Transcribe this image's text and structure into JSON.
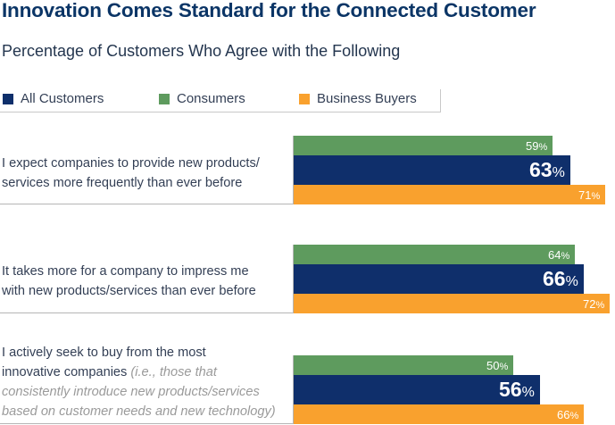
{
  "title": "Innovation Comes Standard for the Connected Customer",
  "subtitle": "Percentage of Customers Who Agree with the Following",
  "colors": {
    "all_customers": "#0f2f6b",
    "consumers": "#5e9b5e",
    "business_buyers": "#f9a12e"
  },
  "chart_data": {
    "type": "bar",
    "orientation": "horizontal",
    "title": "Innovation Comes Standard for the Connected Customer",
    "subtitle": "Percentage of Customers Who Agree with the Following",
    "unit": "%",
    "legend_position": "top-left",
    "series_order": [
      "Consumers",
      "All Customers",
      "Business Buyers"
    ],
    "legend": [
      "All Customers",
      "Consumers",
      "Business Buyers"
    ],
    "categories": [
      {
        "lines": [
          "I expect companies to provide new products/",
          "services more frequently than ever before"
        ],
        "qualifier_lines": []
      },
      {
        "lines": [
          "It takes more for a company to impress me",
          "with new products/services than ever before"
        ],
        "qualifier_lines": []
      },
      {
        "lines": [
          "I actively seek to buy from the most",
          "innovative companies"
        ],
        "qualifier_lines": [
          "(i.e., those that",
          "consistently introduce new products/services",
          "based on customer needs and new technology)"
        ]
      }
    ],
    "series": [
      {
        "name": "Consumers",
        "values": [
          59,
          64,
          50
        ]
      },
      {
        "name": "All Customers",
        "values": [
          63,
          66,
          56
        ]
      },
      {
        "name": "Business Buyers",
        "values": [
          71,
          72,
          66
        ]
      }
    ]
  }
}
